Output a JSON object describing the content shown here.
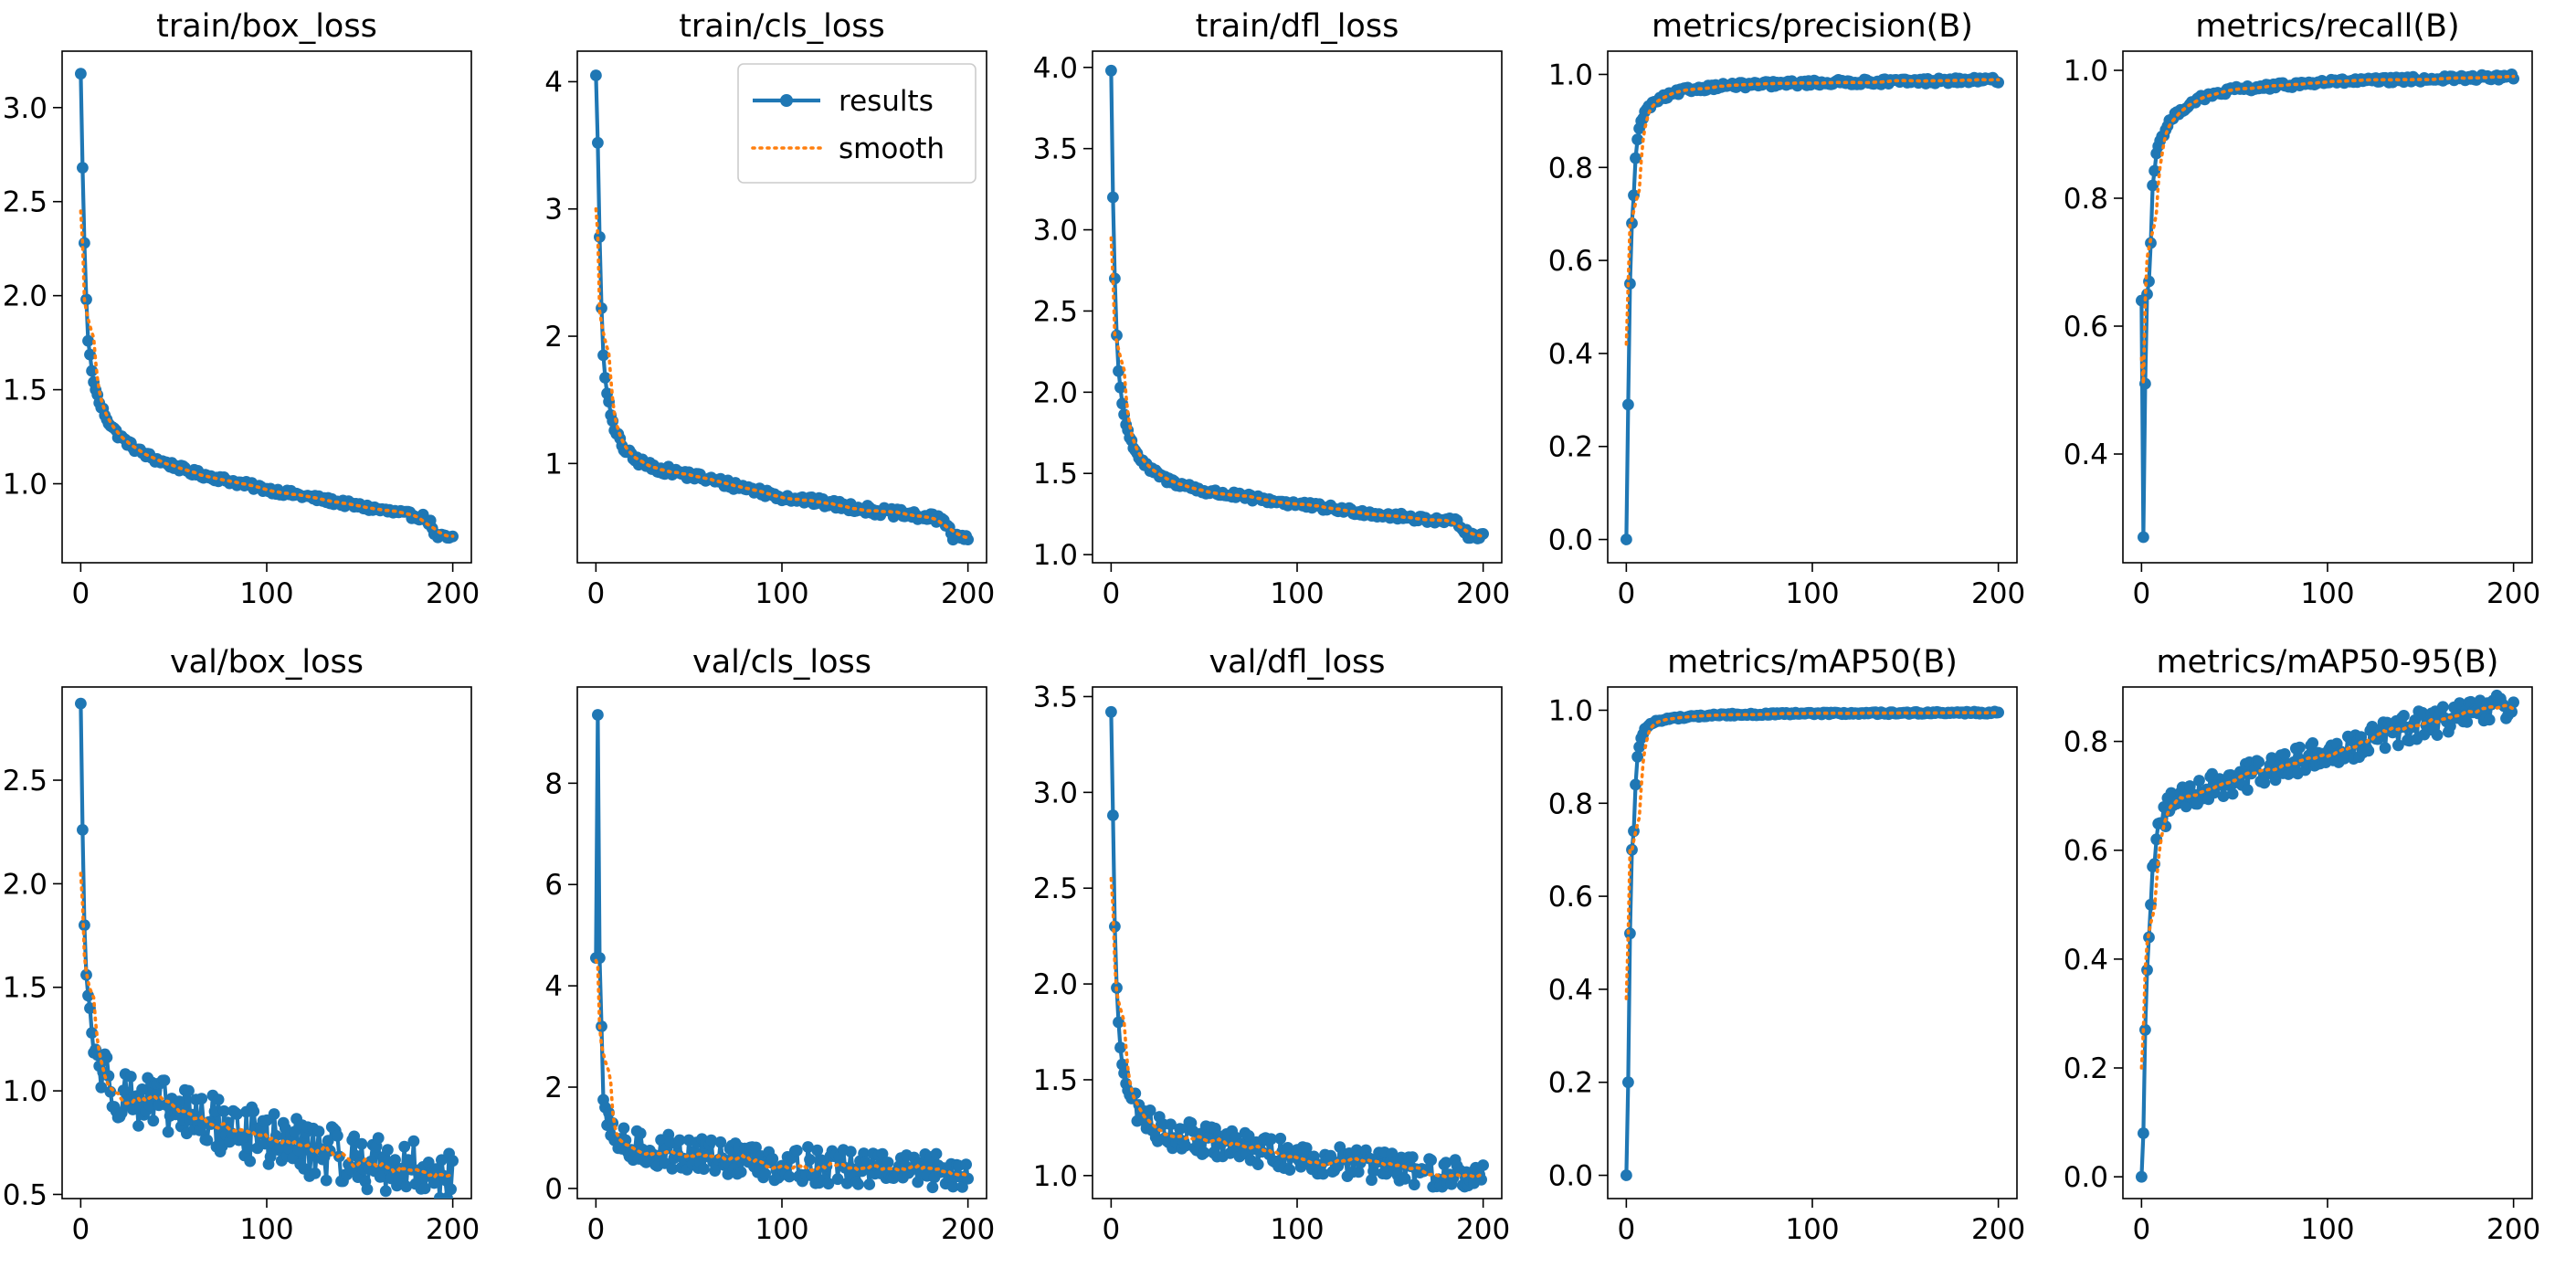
{
  "figure": {
    "colors": {
      "results": "#1f77b4",
      "smooth": "#ff7f0e",
      "axis": "#000000",
      "background": "#ffffff"
    },
    "legend": {
      "results_label": "results",
      "smooth_label": "smooth",
      "location": "upper-right of train/cls_loss panel"
    }
  },
  "chart_data": [
    {
      "type": "line",
      "title": "train/box_loss",
      "xlabel": "",
      "ylabel": "",
      "xlim": [
        -10,
        210
      ],
      "ylim": [
        0.58,
        3.3
      ],
      "xticks": [
        0,
        100,
        200
      ],
      "xtick_labels": [
        "0",
        "100",
        "200"
      ],
      "yticks": [
        1.0,
        1.5,
        2.0,
        2.5,
        3.0
      ],
      "ytick_labels": [
        "1.0",
        "1.5",
        "2.0",
        "2.5",
        "3.0"
      ],
      "epochs": 200,
      "shape": {
        "kind": "decay",
        "keys": [
          [
            0,
            3.18
          ],
          [
            1,
            2.68
          ],
          [
            2,
            2.28
          ],
          [
            3,
            1.98
          ],
          [
            4,
            1.76
          ],
          [
            6,
            1.6
          ],
          [
            8,
            1.5
          ],
          [
            10,
            1.43
          ],
          [
            15,
            1.33
          ],
          [
            20,
            1.26
          ],
          [
            30,
            1.18
          ],
          [
            40,
            1.13
          ],
          [
            60,
            1.06
          ],
          [
            100,
            0.97
          ],
          [
            150,
            0.88
          ],
          [
            185,
            0.82
          ],
          [
            188,
            0.79
          ],
          [
            191,
            0.72
          ],
          [
            200,
            0.71
          ]
        ],
        "noise": 0.006
      },
      "smooth_start": [
        2.45,
        2.28,
        1.98
      ]
    },
    {
      "type": "line",
      "title": "train/cls_loss",
      "xlabel": "",
      "ylabel": "",
      "xlim": [
        -10,
        210
      ],
      "ylim": [
        0.22,
        4.24
      ],
      "xticks": [
        0,
        100,
        200
      ],
      "xtick_labels": [
        "0",
        "100",
        "200"
      ],
      "yticks": [
        1,
        2,
        3,
        4
      ],
      "ytick_labels": [
        "1",
        "2",
        "3",
        "4"
      ],
      "epochs": 200,
      "shape": {
        "kind": "decay",
        "keys": [
          [
            0,
            4.05
          ],
          [
            1,
            3.52
          ],
          [
            2,
            2.78
          ],
          [
            3,
            2.22
          ],
          [
            4,
            1.85
          ],
          [
            6,
            1.55
          ],
          [
            8,
            1.38
          ],
          [
            10,
            1.26
          ],
          [
            15,
            1.12
          ],
          [
            20,
            1.04
          ],
          [
            30,
            0.97
          ],
          [
            50,
            0.91
          ],
          [
            80,
            0.81
          ],
          [
            100,
            0.74
          ],
          [
            150,
            0.63
          ],
          [
            186,
            0.56
          ],
          [
            189,
            0.53
          ],
          [
            192,
            0.42
          ],
          [
            200,
            0.41
          ]
        ],
        "noise": 0.008
      },
      "smooth_start": [
        3.0,
        2.8,
        2.2
      ]
    },
    {
      "type": "line",
      "title": "train/dfl_loss",
      "xlabel": "",
      "ylabel": "",
      "xlim": [
        -10,
        210
      ],
      "ylim": [
        0.95,
        4.1
      ],
      "xticks": [
        0,
        100,
        200
      ],
      "xtick_labels": [
        "0",
        "100",
        "200"
      ],
      "yticks": [
        1.0,
        1.5,
        2.0,
        2.5,
        3.0,
        3.5,
        4.0
      ],
      "ytick_labels": [
        "1.0",
        "1.5",
        "2.0",
        "2.5",
        "3.0",
        "3.5",
        "4.0"
      ],
      "epochs": 200,
      "shape": {
        "kind": "decay",
        "keys": [
          [
            0,
            3.98
          ],
          [
            1,
            3.2
          ],
          [
            2,
            2.7
          ],
          [
            3,
            2.35
          ],
          [
            4,
            2.13
          ],
          [
            6,
            1.93
          ],
          [
            8,
            1.8
          ],
          [
            10,
            1.72
          ],
          [
            15,
            1.6
          ],
          [
            20,
            1.53
          ],
          [
            30,
            1.46
          ],
          [
            50,
            1.39
          ],
          [
            100,
            1.31
          ],
          [
            150,
            1.24
          ],
          [
            186,
            1.2
          ],
          [
            189,
            1.17
          ],
          [
            192,
            1.12
          ],
          [
            200,
            1.11
          ]
        ],
        "noise": 0.006
      },
      "smooth_start": [
        2.95,
        2.7,
        2.35
      ]
    },
    {
      "type": "line",
      "title": "metrics/precision(B)",
      "xlabel": "",
      "ylabel": "",
      "xlim": [
        -10,
        210
      ],
      "ylim": [
        -0.05,
        1.05
      ],
      "xticks": [
        0,
        100,
        200
      ],
      "xtick_labels": [
        "0",
        "100",
        "200"
      ],
      "yticks": [
        0.0,
        0.2,
        0.4,
        0.6,
        0.8,
        1.0
      ],
      "ytick_labels": [
        "0.0",
        "0.2",
        "0.4",
        "0.6",
        "0.8",
        "1.0"
      ],
      "epochs": 200,
      "shape": {
        "kind": "rise",
        "keys": [
          [
            0,
            0.0
          ],
          [
            1,
            0.29
          ],
          [
            2,
            0.55
          ],
          [
            3,
            0.68
          ],
          [
            4,
            0.74
          ],
          [
            5,
            0.82
          ],
          [
            6,
            0.86
          ],
          [
            8,
            0.9
          ],
          [
            10,
            0.92
          ],
          [
            15,
            0.94
          ],
          [
            20,
            0.95
          ],
          [
            30,
            0.965
          ],
          [
            50,
            0.975
          ],
          [
            100,
            0.982
          ],
          [
            200,
            0.988
          ]
        ],
        "noise": 0.005
      },
      "smooth_start": [
        0.42,
        0.55,
        0.68
      ]
    },
    {
      "type": "line",
      "title": "metrics/recall(B)",
      "xlabel": "",
      "ylabel": "",
      "xlim": [
        -10,
        210
      ],
      "ylim": [
        0.23,
        1.03
      ],
      "xticks": [
        0,
        100,
        200
      ],
      "xtick_labels": [
        "0",
        "100",
        "200"
      ],
      "yticks": [
        0.4,
        0.6,
        0.8,
        1.0
      ],
      "ytick_labels": [
        "0.4",
        "0.6",
        "0.8",
        "1.0"
      ],
      "epochs": 200,
      "shape": {
        "kind": "rise",
        "keys": [
          [
            0,
            0.64
          ],
          [
            1,
            0.27
          ],
          [
            2,
            0.51
          ],
          [
            3,
            0.65
          ],
          [
            4,
            0.67
          ],
          [
            5,
            0.73
          ],
          [
            6,
            0.82
          ],
          [
            8,
            0.87
          ],
          [
            10,
            0.89
          ],
          [
            15,
            0.92
          ],
          [
            20,
            0.935
          ],
          [
            30,
            0.955
          ],
          [
            50,
            0.97
          ],
          [
            100,
            0.982
          ],
          [
            200,
            0.99
          ]
        ],
        "noise": 0.005
      },
      "smooth_start": [
        0.55,
        0.51,
        0.64
      ]
    },
    {
      "type": "line",
      "title": "val/box_loss",
      "xlabel": "",
      "ylabel": "",
      "xlim": [
        -10,
        210
      ],
      "ylim": [
        0.48,
        2.95
      ],
      "xticks": [
        0,
        100,
        200
      ],
      "xtick_labels": [
        "0",
        "100",
        "200"
      ],
      "yticks": [
        0.5,
        1.0,
        1.5,
        2.0,
        2.5
      ],
      "ytick_labels": [
        "0.5",
        "1.0",
        "1.5",
        "2.0",
        "2.5"
      ],
      "epochs": 200,
      "shape": {
        "kind": "decay",
        "keys": [
          [
            0,
            2.87
          ],
          [
            1,
            2.26
          ],
          [
            2,
            1.8
          ],
          [
            3,
            1.56
          ],
          [
            4,
            1.46
          ],
          [
            6,
            1.28
          ],
          [
            8,
            1.2
          ],
          [
            10,
            1.12
          ],
          [
            15,
            1.05
          ],
          [
            20,
            1.0
          ],
          [
            30,
            0.96
          ],
          [
            50,
            0.9
          ],
          [
            100,
            0.77
          ],
          [
            150,
            0.66
          ],
          [
            200,
            0.6
          ]
        ],
        "noise": 0.055
      },
      "smooth_start": [
        2.05,
        1.9,
        1.65
      ]
    },
    {
      "type": "line",
      "title": "val/cls_loss",
      "xlabel": "",
      "ylabel": "",
      "xlim": [
        -10,
        210
      ],
      "ylim": [
        -0.2,
        9.9
      ],
      "xticks": [
        0,
        100,
        200
      ],
      "xtick_labels": [
        "0",
        "100",
        "200"
      ],
      "yticks": [
        0,
        2,
        4,
        6,
        8
      ],
      "ytick_labels": [
        "0",
        "2",
        "4",
        "6",
        "8"
      ],
      "epochs": 200,
      "shape": {
        "kind": "decay",
        "keys": [
          [
            0,
            4.55
          ],
          [
            1,
            9.35
          ],
          [
            2,
            4.55
          ],
          [
            3,
            3.2
          ],
          [
            4,
            1.75
          ],
          [
            5,
            1.6
          ],
          [
            6,
            1.25
          ],
          [
            8,
            1.05
          ],
          [
            10,
            0.95
          ],
          [
            15,
            0.85
          ],
          [
            20,
            0.8
          ],
          [
            50,
            0.68
          ],
          [
            100,
            0.5
          ],
          [
            150,
            0.38
          ],
          [
            200,
            0.32
          ]
        ],
        "noise": 0.035
      },
      "smooth_start": [
        4.5,
        4.4,
        3.2
      ]
    },
    {
      "type": "line",
      "title": "val/dfl_loss",
      "xlabel": "",
      "ylabel": "",
      "xlim": [
        -10,
        210
      ],
      "ylim": [
        0.88,
        3.55
      ],
      "xticks": [
        0,
        100,
        200
      ],
      "xtick_labels": [
        "0",
        "100",
        "200"
      ],
      "yticks": [
        1.0,
        1.5,
        2.0,
        2.5,
        3.0,
        3.5
      ],
      "ytick_labels": [
        "1.0",
        "1.5",
        "2.0",
        "2.5",
        "3.0",
        "3.5"
      ],
      "epochs": 200,
      "shape": {
        "kind": "decay",
        "keys": [
          [
            0,
            3.42
          ],
          [
            1,
            2.88
          ],
          [
            2,
            2.3
          ],
          [
            3,
            1.98
          ],
          [
            4,
            1.8
          ],
          [
            6,
            1.58
          ],
          [
            8,
            1.48
          ],
          [
            10,
            1.42
          ],
          [
            15,
            1.33
          ],
          [
            20,
            1.28
          ],
          [
            30,
            1.23
          ],
          [
            50,
            1.18
          ],
          [
            100,
            1.1
          ],
          [
            150,
            1.04
          ],
          [
            200,
            0.99
          ]
        ],
        "noise": 0.03
      },
      "smooth_start": [
        2.55,
        2.4,
        2.1
      ]
    },
    {
      "type": "line",
      "title": "metrics/mAP50(B)",
      "xlabel": "",
      "ylabel": "",
      "xlim": [
        -10,
        210
      ],
      "ylim": [
        -0.05,
        1.05
      ],
      "xticks": [
        0,
        100,
        200
      ],
      "xtick_labels": [
        "0",
        "100",
        "200"
      ],
      "yticks": [
        0.0,
        0.2,
        0.4,
        0.6,
        0.8,
        1.0
      ],
      "ytick_labels": [
        "0.0",
        "0.2",
        "0.4",
        "0.6",
        "0.8",
        "1.0"
      ],
      "epochs": 200,
      "shape": {
        "kind": "rise",
        "keys": [
          [
            0,
            0.0
          ],
          [
            1,
            0.2
          ],
          [
            2,
            0.52
          ],
          [
            3,
            0.7
          ],
          [
            4,
            0.74
          ],
          [
            5,
            0.84
          ],
          [
            6,
            0.9
          ],
          [
            8,
            0.94
          ],
          [
            10,
            0.96
          ],
          [
            15,
            0.975
          ],
          [
            20,
            0.98
          ],
          [
            30,
            0.985
          ],
          [
            50,
            0.99
          ],
          [
            100,
            0.993
          ],
          [
            200,
            0.995
          ]
        ],
        "noise": 0.002
      },
      "smooth_start": [
        0.38,
        0.52,
        0.7
      ]
    },
    {
      "type": "line",
      "title": "metrics/mAP50-95(B)",
      "xlabel": "",
      "ylabel": "",
      "xlim": [
        -10,
        210
      ],
      "ylim": [
        -0.04,
        0.9
      ],
      "xticks": [
        0,
        100,
        200
      ],
      "xtick_labels": [
        "0",
        "100",
        "200"
      ],
      "yticks": [
        0.0,
        0.2,
        0.4,
        0.6,
        0.8
      ],
      "ytick_labels": [
        "0.0",
        "0.2",
        "0.4",
        "0.6",
        "0.8"
      ],
      "epochs": 200,
      "shape": {
        "kind": "rise",
        "keys": [
          [
            0,
            0.0
          ],
          [
            1,
            0.08
          ],
          [
            2,
            0.27
          ],
          [
            3,
            0.38
          ],
          [
            4,
            0.44
          ],
          [
            5,
            0.5
          ],
          [
            6,
            0.57
          ],
          [
            8,
            0.62
          ],
          [
            10,
            0.65
          ],
          [
            15,
            0.68
          ],
          [
            20,
            0.7
          ],
          [
            30,
            0.71
          ],
          [
            50,
            0.73
          ],
          [
            100,
            0.78
          ],
          [
            150,
            0.83
          ],
          [
            200,
            0.865
          ]
        ],
        "noise": 0.028
      },
      "smooth_start": [
        0.2,
        0.27,
        0.38
      ]
    }
  ]
}
